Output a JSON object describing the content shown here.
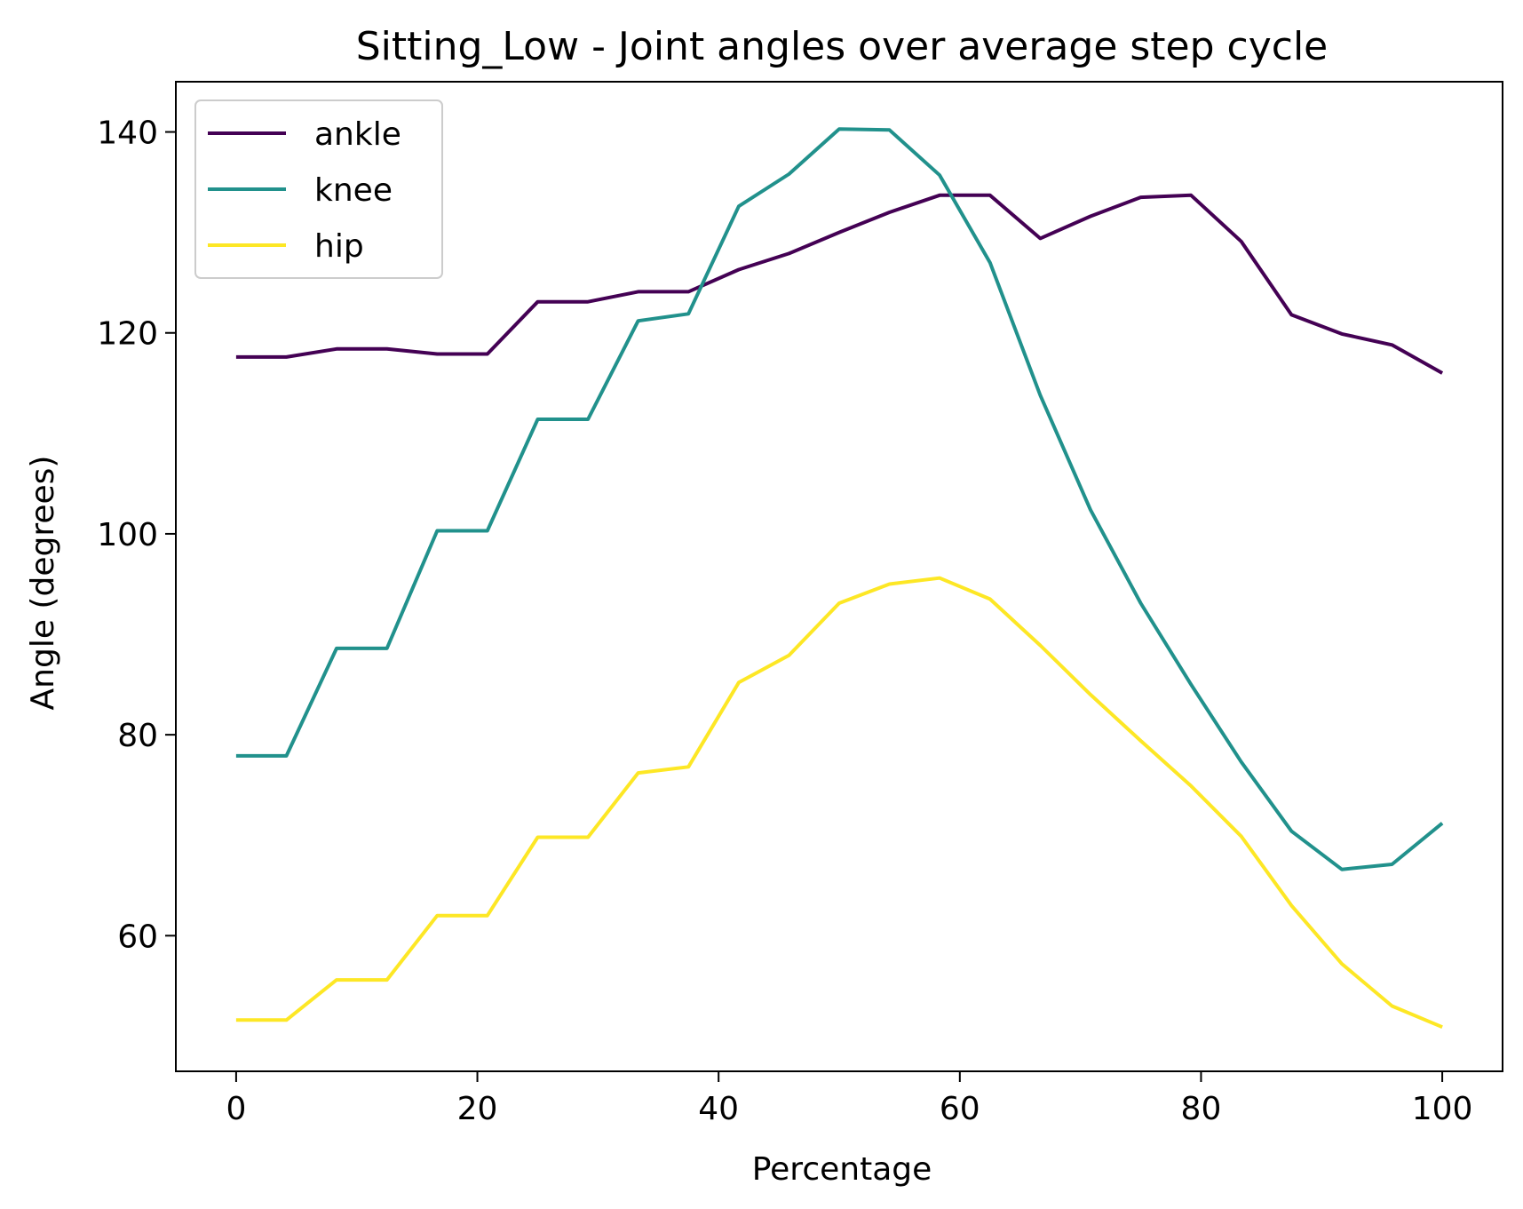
{
  "chart_data": {
    "type": "line",
    "title": "Sitting_Low - Joint angles over average step cycle",
    "xlabel": "Percentage",
    "ylabel": "Angle (degrees)",
    "xlim": [
      -5,
      105
    ],
    "ylim": [
      46.5,
      145
    ],
    "xticks": [
      0,
      20,
      40,
      60,
      80,
      100
    ],
    "yticks": [
      60,
      80,
      100,
      120,
      140
    ],
    "grid": false,
    "legend_position": "top-left",
    "x": [
      0,
      4.17,
      8.33,
      12.5,
      16.67,
      20.83,
      25,
      29.17,
      33.33,
      37.5,
      41.67,
      45.83,
      50,
      54.17,
      58.33,
      62.5,
      66.67,
      70.83,
      75,
      79.17,
      83.33,
      87.5,
      91.67,
      95.83,
      100
    ],
    "series": [
      {
        "name": "ankle",
        "color": "#440154",
        "values": [
          117.6,
          117.6,
          118.4,
          118.4,
          117.9,
          117.9,
          123.1,
          123.1,
          124.1,
          124.1,
          126.3,
          127.9,
          130.0,
          132.0,
          133.7,
          133.7,
          129.4,
          131.6,
          133.5,
          133.7,
          129.1,
          121.8,
          119.9,
          118.8,
          116.0
        ]
      },
      {
        "name": "knee",
        "color": "#21918c",
        "values": [
          77.9,
          77.9,
          88.6,
          88.6,
          100.3,
          100.3,
          111.4,
          111.4,
          121.2,
          121.9,
          132.6,
          135.8,
          140.3,
          140.2,
          135.7,
          127.0,
          113.8,
          102.4,
          93.1,
          85.0,
          77.3,
          70.4,
          66.6,
          67.1,
          71.2
        ]
      },
      {
        "name": "hip",
        "color": "#fde725",
        "values": [
          51.6,
          51.6,
          55.6,
          55.6,
          62.0,
          62.0,
          69.8,
          69.8,
          76.2,
          76.8,
          85.2,
          87.9,
          93.1,
          95.0,
          95.6,
          93.5,
          88.9,
          84.0,
          79.4,
          74.9,
          69.9,
          63.0,
          57.2,
          53.0,
          50.9
        ]
      }
    ]
  }
}
